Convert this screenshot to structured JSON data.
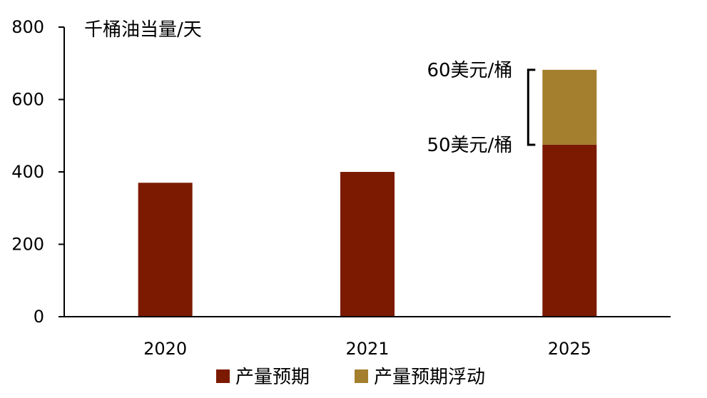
{
  "chart_data": {
    "type": "bar",
    "stacked": true,
    "ylabel": "千桶油当量/天",
    "ylim": [
      0,
      800
    ],
    "yticks": [
      0,
      200,
      400,
      600,
      800
    ],
    "categories": [
      "2020",
      "2021",
      "2025"
    ],
    "series": [
      {
        "name": "产量预期",
        "color": "#7B1A00",
        "values": [
          370,
          400,
          475
        ]
      },
      {
        "name": "产量预期浮动",
        "color": "#A47F2E",
        "values": [
          0,
          0,
          207
        ]
      }
    ],
    "annotations": [
      {
        "text": "60美元/桶",
        "category": "2025",
        "value": 682
      },
      {
        "text": "50美元/桶",
        "category": "2025",
        "value": 475
      }
    ],
    "legend": "bottom",
    "grid": false
  }
}
